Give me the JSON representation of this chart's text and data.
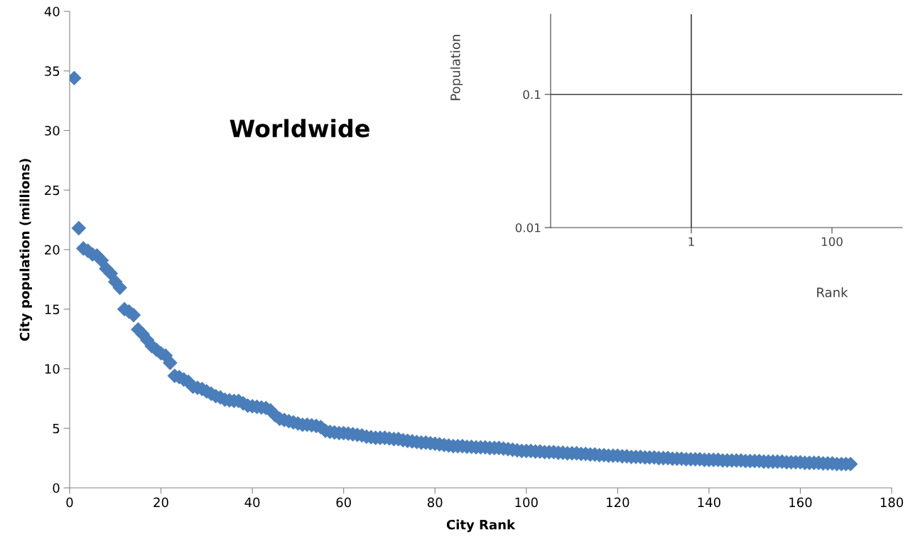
{
  "chart_data": [
    {
      "type": "scatter",
      "title": "Worldwide",
      "xlabel": "City Rank",
      "ylabel": "City population (millions)",
      "marker": "diamond",
      "grid": false,
      "xlim": [
        0,
        180
      ],
      "ylim": [
        0,
        40
      ],
      "xticks": [
        0,
        20,
        40,
        60,
        80,
        100,
        120,
        140,
        160,
        180
      ],
      "yticks": [
        0,
        5,
        10,
        15,
        20,
        25,
        30,
        35,
        40
      ],
      "x": [
        1,
        2,
        3,
        4,
        5,
        6,
        7,
        8,
        9,
        10,
        11,
        12,
        13,
        14,
        15,
        16,
        17,
        18,
        19,
        20,
        21,
        22,
        23,
        24,
        25,
        26,
        27,
        28,
        29,
        30,
        31,
        32,
        33,
        34,
        35,
        36,
        37,
        38,
        39,
        40,
        41,
        42,
        43,
        44,
        45,
        46,
        47,
        48,
        49,
        50,
        51,
        52,
        53,
        54,
        55,
        56,
        57,
        58,
        59,
        60,
        61,
        62,
        63,
        64,
        65,
        66,
        67,
        68,
        69,
        70,
        71,
        72,
        73,
        74,
        75,
        76,
        77,
        78,
        79,
        80,
        81,
        82,
        83,
        84,
        85,
        86,
        87,
        88,
        89,
        90,
        91,
        92,
        93,
        94,
        95,
        96,
        97,
        98,
        99,
        100,
        101,
        102,
        103,
        104,
        105,
        106,
        107,
        108,
        109,
        110,
        111,
        112,
        113,
        114,
        115,
        116,
        117,
        118,
        119,
        120,
        121,
        122,
        123,
        124,
        125,
        126,
        127,
        128,
        129,
        130,
        131,
        132,
        133,
        134,
        135,
        136,
        137,
        138,
        139,
        140,
        141,
        142,
        143,
        144,
        145,
        146,
        147,
        148,
        149,
        150,
        151,
        152,
        153,
        154,
        155,
        156,
        157,
        158,
        159,
        160,
        161,
        162,
        163,
        164,
        165,
        166,
        167,
        168,
        169,
        170,
        171
      ],
      "series": [
        {
          "color": "#4a7ebb",
          "values": [
            34.4,
            21.8,
            20.1,
            19.9,
            19.6,
            19.5,
            19.1,
            18.4,
            18.0,
            17.3,
            16.8,
            15.0,
            14.8,
            14.5,
            13.3,
            12.9,
            12.4,
            11.9,
            11.6,
            11.3,
            11.1,
            10.5,
            9.4,
            9.3,
            9.1,
            8.9,
            8.5,
            8.4,
            8.3,
            8.1,
            7.9,
            7.7,
            7.6,
            7.4,
            7.35,
            7.3,
            7.3,
            7.1,
            6.9,
            6.85,
            6.8,
            6.75,
            6.7,
            6.5,
            6.1,
            5.8,
            5.7,
            5.6,
            5.5,
            5.4,
            5.3,
            5.3,
            5.25,
            5.2,
            5.1,
            4.8,
            4.7,
            4.65,
            4.6,
            4.6,
            4.55,
            4.5,
            4.45,
            4.4,
            4.3,
            4.25,
            4.2,
            4.2,
            4.2,
            4.15,
            4.1,
            4.1,
            4.0,
            3.95,
            3.9,
            3.85,
            3.8,
            3.8,
            3.75,
            3.7,
            3.65,
            3.6,
            3.55,
            3.5,
            3.5,
            3.5,
            3.45,
            3.45,
            3.4,
            3.4,
            3.4,
            3.35,
            3.35,
            3.35,
            3.3,
            3.25,
            3.2,
            3.15,
            3.1,
            3.1,
            3.1,
            3.05,
            3.05,
            3.0,
            3.0,
            3.0,
            2.95,
            2.95,
            2.9,
            2.9,
            2.9,
            2.85,
            2.85,
            2.8,
            2.8,
            2.75,
            2.75,
            2.7,
            2.7,
            2.7,
            2.65,
            2.65,
            2.6,
            2.6,
            2.6,
            2.55,
            2.55,
            2.55,
            2.5,
            2.5,
            2.5,
            2.45,
            2.45,
            2.45,
            2.4,
            2.4,
            2.4,
            2.4,
            2.35,
            2.35,
            2.35,
            2.35,
            2.3,
            2.3,
            2.3,
            2.3,
            2.3,
            2.25,
            2.25,
            2.25,
            2.25,
            2.2,
            2.2,
            2.2,
            2.2,
            2.2,
            2.15,
            2.15,
            2.15,
            2.15,
            2.1,
            2.1,
            2.1,
            2.1,
            2.05,
            2.05,
            2.05,
            2.0,
            2.0,
            2.0,
            2.0
          ]
        }
      ]
    },
    {
      "type": "line",
      "xlabel": "Rank",
      "ylabel": "Population",
      "log": "xy",
      "grid": false,
      "xlim": [
        0.01,
        1000
      ],
      "ylim": [
        0.01,
        0.4
      ],
      "xticks": [
        1,
        100
      ],
      "yticks": [
        0.01,
        0.1
      ],
      "ref_lines": [
        {
          "axis": "x",
          "value": 1,
          "color": "#404040"
        },
        {
          "axis": "y",
          "value": 0.1,
          "color": "#404040"
        }
      ]
    }
  ]
}
